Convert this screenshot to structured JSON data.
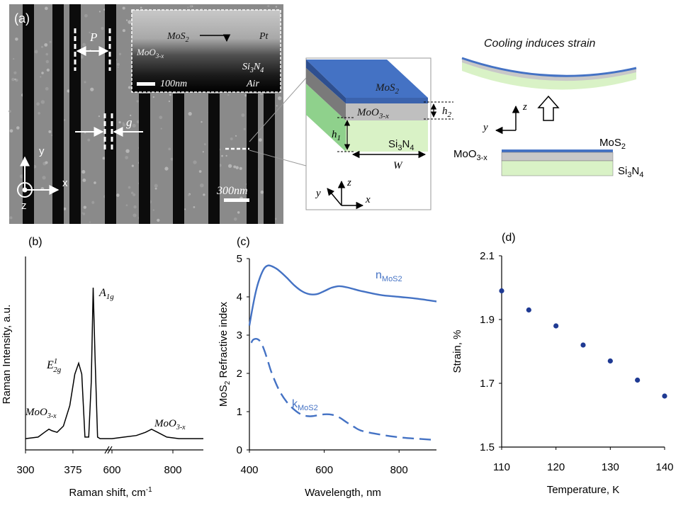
{
  "panel_a": {
    "panel_label": "(a)",
    "sem": {
      "period_label": "P",
      "gap_label": "g",
      "scale_bar_label": "300nm",
      "axis_y": "y",
      "axis_x": "x",
      "axis_z": "z",
      "inset": {
        "mos2": "MoS",
        "mos2_sub": "2",
        "moo3": "MoO",
        "moo3_sub": "3-x",
        "pt": "Pt",
        "si3n4_a": "Si",
        "si3n4_sub1": "3",
        "si3n4_b": "N",
        "si3n4_sub2": "4",
        "air": "Air",
        "scale_bar_label": "100nm"
      }
    },
    "schematic": {
      "mos2": "MoS",
      "mos2_sub": "2",
      "moo3": "MoO",
      "moo3_sub": "3-x",
      "si3n4_a": "Si",
      "si3n4_sub1": "3",
      "si3n4_b": "N",
      "si3n4_sub2": "4",
      "h1": "h",
      "h1_sub": "1",
      "h2": "h",
      "h2_sub": "2",
      "w": "W",
      "axis_y": "y",
      "axis_z": "z",
      "axis_x": "x"
    },
    "strain_cartoon": {
      "title": "Cooling induces strain",
      "axis_z": "z",
      "axis_y": "y",
      "mos2": "MoS",
      "mos2_sub": "2",
      "moo3": "MoO",
      "moo3_sub": "3-x",
      "si3n4_a": "Si",
      "si3n4_sub1": "3",
      "si3n4_b": "N",
      "si3n4_sub2": "4"
    }
  },
  "colors": {
    "mos2_blue": "#4472c4",
    "moo3_gray": "#bfbfbf",
    "si3n4_green": "#d9f2c6",
    "series_blue": "#4472c4",
    "dot_navy": "#1f3a93"
  },
  "chart_data": [
    {
      "type": "line",
      "panel_label": "(b)",
      "xlabel": "Raman shift, cm",
      "xlabel_sup": "-1",
      "ylabel": "Raman Intensity, a.u.",
      "x_ticks": [
        "300",
        "375",
        "600",
        "800"
      ],
      "axis_break": true,
      "peak_labels": [
        {
          "text": "E",
          "sup": "1",
          "sub": "2g",
          "x": 384
        },
        {
          "text": "A",
          "sub": "1g",
          "x": 407
        },
        {
          "text": "MoO",
          "sub": "3-x",
          "x": 337
        },
        {
          "text": "MoO",
          "sub": "3-x",
          "x": 730
        }
      ],
      "series": [
        {
          "x": [
            300,
            320,
            330,
            337,
            342,
            350,
            360,
            370,
            378,
            384,
            389,
            394,
            400,
            404,
            407,
            410,
            414,
            418,
            425,
            430,
            600,
            640,
            680,
            710,
            730,
            750,
            780,
            820,
            860,
            900
          ],
          "y": [
            0.04,
            0.05,
            0.08,
            0.1,
            0.09,
            0.08,
            0.12,
            0.25,
            0.45,
            0.52,
            0.45,
            0.05,
            0.05,
            0.4,
            1.0,
            0.55,
            0.05,
            0.04,
            0.04,
            0.04,
            0.04,
            0.05,
            0.06,
            0.08,
            0.1,
            0.08,
            0.05,
            0.04,
            0.04,
            0.04
          ]
        }
      ]
    },
    {
      "type": "line",
      "panel_label": "(c)",
      "xlabel": "Wavelength, nm",
      "ylabel_pre": "MoS",
      "ylabel_sub": "2",
      "ylabel_post": " Refractive index",
      "xlim": [
        400,
        900
      ],
      "ylim": [
        0,
        5
      ],
      "x_ticks": [
        400,
        600,
        800
      ],
      "y_ticks": [
        0,
        1,
        2,
        3,
        4,
        5
      ],
      "series": [
        {
          "name": "n",
          "name_sub": "MoS2",
          "style": "solid",
          "x": [
            400,
            410,
            420,
            430,
            440,
            450,
            460,
            470,
            480,
            500,
            520,
            540,
            560,
            580,
            600,
            620,
            640,
            660,
            680,
            700,
            750,
            800,
            850,
            900
          ],
          "y": [
            3.25,
            3.8,
            4.25,
            4.55,
            4.75,
            4.82,
            4.8,
            4.75,
            4.68,
            4.5,
            4.3,
            4.15,
            4.07,
            4.07,
            4.15,
            4.24,
            4.28,
            4.25,
            4.2,
            4.15,
            4.05,
            4.0,
            3.95,
            3.88
          ]
        },
        {
          "name": "k",
          "name_sub": "MoS2",
          "style": "dashed",
          "x": [
            405,
            410,
            420,
            430,
            440,
            450,
            460,
            480,
            500,
            520,
            540,
            560,
            580,
            600,
            620,
            640,
            660,
            680,
            700,
            750,
            800,
            850,
            900
          ],
          "y": [
            2.8,
            2.88,
            2.9,
            2.82,
            2.6,
            2.3,
            2.0,
            1.55,
            1.25,
            1.05,
            0.92,
            0.88,
            0.9,
            0.93,
            0.92,
            0.85,
            0.72,
            0.6,
            0.5,
            0.4,
            0.33,
            0.29,
            0.26
          ]
        }
      ]
    },
    {
      "type": "scatter",
      "panel_label": "(d)",
      "xlabel": "Temperature, K",
      "ylabel": "Strain, %",
      "xlim": [
        110,
        140
      ],
      "ylim": [
        1.5,
        2.1
      ],
      "x_ticks": [
        110,
        120,
        130,
        140
      ],
      "y_ticks": [
        "1.5",
        "1.7",
        "1.9",
        "2.1"
      ],
      "series": [
        {
          "x": [
            110,
            115,
            120,
            125,
            130,
            135,
            140
          ],
          "y": [
            1.99,
            1.93,
            1.88,
            1.82,
            1.77,
            1.71,
            1.66
          ]
        }
      ]
    }
  ]
}
